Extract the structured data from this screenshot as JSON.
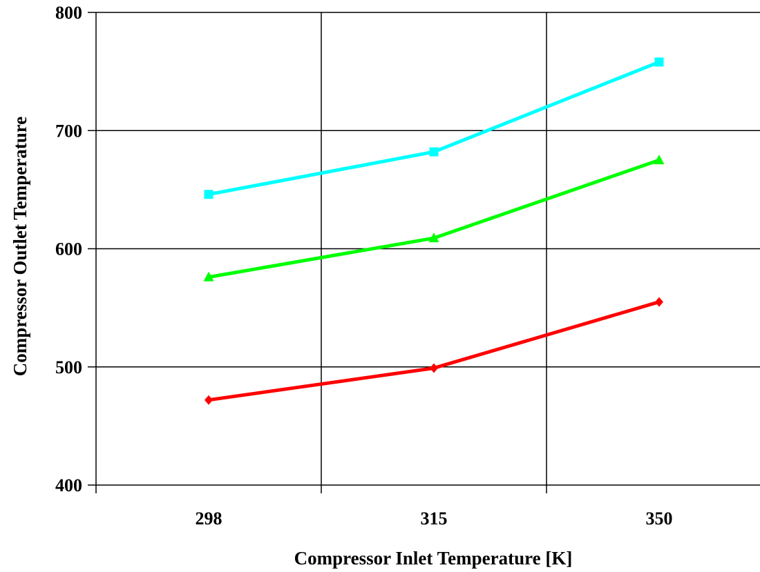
{
  "chart_data": {
    "type": "line",
    "title": "",
    "xlabel": "Compressor Inlet Temperature [K]",
    "ylabel": "Compressor Outlet Temperature",
    "categories": [
      "298",
      "315",
      "350"
    ],
    "ylim": [
      400,
      800
    ],
    "yticks": [
      "400",
      "500",
      "600",
      "700",
      "800"
    ],
    "grid": true,
    "legend": "none",
    "series": [
      {
        "color": "#00FFFF",
        "marker": "square",
        "values": [
          646,
          682,
          758
        ]
      },
      {
        "color": "#00FF00",
        "marker": "triangle",
        "values": [
          576,
          609,
          675
        ]
      },
      {
        "color": "#FF0000",
        "marker": "diamond",
        "values": [
          472,
          499,
          555
        ]
      }
    ]
  }
}
